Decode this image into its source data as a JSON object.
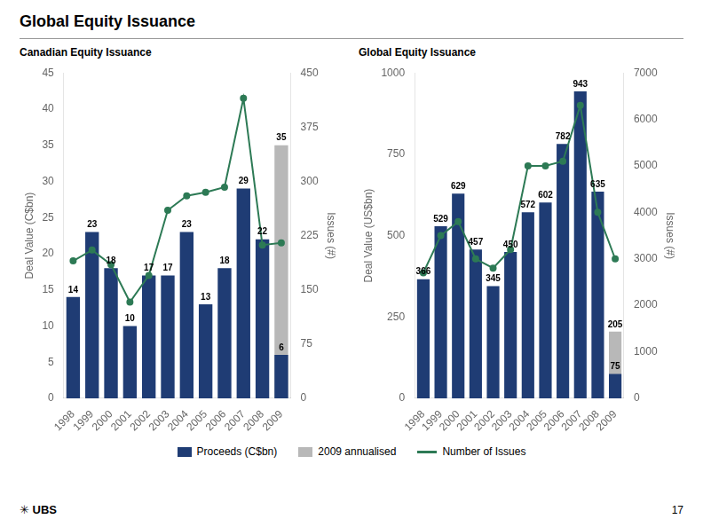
{
  "title": "Global Equity Issuance",
  "annotations": [
    "✳ UBS",
    "17"
  ],
  "chart_data": [
    {
      "type": "bar",
      "title": "Canadian Equity Issuance",
      "categories": [
        "1998",
        "1999",
        "2000",
        "2001",
        "2002",
        "2003",
        "2004",
        "2005",
        "2006",
        "2007",
        "2008",
        "2009"
      ],
      "series": [
        {
          "name": "Proceeds (C$bn)",
          "color": "#1f3c74",
          "data_labels": true,
          "values": [
            14,
            23,
            18,
            10,
            17,
            17,
            23,
            13,
            18,
            29,
            22,
            6
          ]
        },
        {
          "name": "2009 annualised",
          "color": "#b8b8b8",
          "data_labels": true,
          "values": [
            null,
            null,
            null,
            null,
            null,
            null,
            null,
            null,
            null,
            null,
            null,
            35
          ]
        },
        {
          "name": "Number of Issues",
          "type": "line",
          "color": "#2d7a55",
          "marker": "circle",
          "axis": "y2",
          "values": [
            190,
            205,
            185,
            133,
            170,
            260,
            280,
            285,
            292,
            415,
            212,
            215
          ]
        }
      ],
      "ylabel": "Deal Value (C$bn)",
      "y2label": "Issues (#)",
      "ylim": [
        0,
        45
      ],
      "yticks": [
        0,
        5,
        10,
        15,
        20,
        25,
        30,
        35,
        40,
        45
      ],
      "y2lim": [
        0,
        450
      ],
      "y2ticks": [
        0,
        75,
        150,
        225,
        300,
        375,
        450
      ],
      "grid": false
    },
    {
      "type": "bar",
      "title": "Global Equity Issuance",
      "categories": [
        "1998",
        "1999",
        "2000",
        "2001",
        "2002",
        "2003",
        "2004",
        "2005",
        "2006",
        "2007",
        "2008",
        "2009"
      ],
      "series": [
        {
          "name": "Proceeds (C$bn)",
          "color": "#1f3c74",
          "data_labels": true,
          "values": [
            366,
            529,
            629,
            457,
            345,
            450,
            572,
            602,
            782,
            943,
            635,
            75
          ]
        },
        {
          "name": "2009 annualised",
          "color": "#b8b8b8",
          "data_labels": true,
          "values": [
            null,
            null,
            null,
            null,
            null,
            null,
            null,
            null,
            null,
            null,
            null,
            205
          ]
        },
        {
          "name": "Number of Issues",
          "type": "line",
          "color": "#2d7a55",
          "marker": "circle",
          "axis": "y2",
          "values": [
            2700,
            3500,
            3800,
            3000,
            2800,
            3200,
            5000,
            5000,
            5100,
            6300,
            4000,
            3000
          ]
        }
      ],
      "ylabel": "Deal Value (US$bn)",
      "y2label": "Issues (#)",
      "ylim": [
        0,
        1000
      ],
      "yticks": [
        0,
        250,
        500,
        750,
        1000
      ],
      "y2lim": [
        0,
        7000
      ],
      "y2ticks": [
        0,
        1000,
        2000,
        3000,
        4000,
        5000,
        6000,
        7000
      ],
      "grid": false
    }
  ]
}
